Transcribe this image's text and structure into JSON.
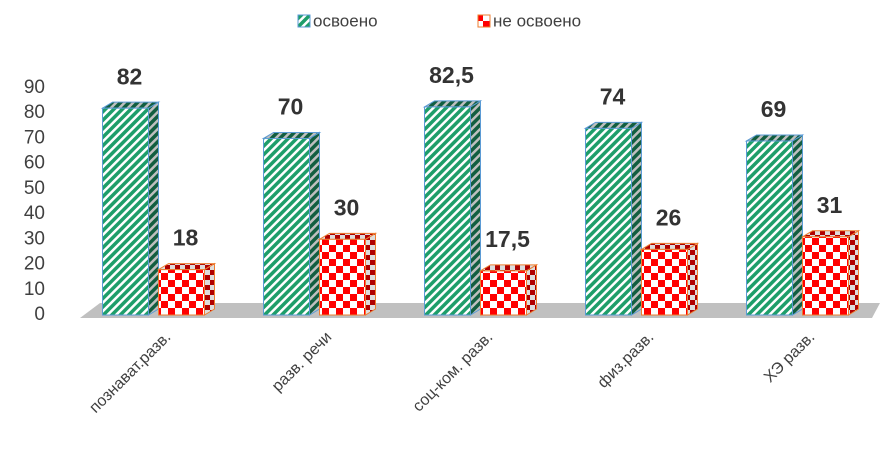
{
  "chart_data": {
    "type": "bar3d",
    "categories": [
      "познават.разв.",
      "разв. речи",
      "соц-ком. разв.",
      "физ.разв.",
      "ХЭ разв."
    ],
    "series": [
      {
        "name": "освоено",
        "color": "#1e9e6a",
        "values": [
          82,
          70,
          82.5,
          74,
          69
        ],
        "value_labels": [
          "82",
          "70",
          "82,5",
          "74",
          "69"
        ]
      },
      {
        "name": "не освоено",
        "color": "#ff0000",
        "values": [
          18,
          30,
          17.5,
          26,
          31
        ],
        "value_labels": [
          "18",
          "30",
          "17,5",
          "26",
          "31"
        ]
      }
    ],
    "ylim": [
      0,
      90
    ],
    "yticks": [
      0,
      10,
      20,
      30,
      40,
      50,
      60,
      70,
      80,
      90
    ],
    "grid": false,
    "legend": "top"
  }
}
